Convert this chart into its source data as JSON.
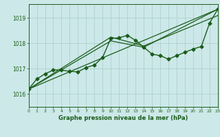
{
  "background_color": "#cce8e8",
  "grid_color": "#aacccc",
  "line_color": "#1a5c1a",
  "title": "Graphe pression niveau de la mer (hPa)",
  "xlim": [
    0,
    23
  ],
  "ylim": [
    1015.5,
    1019.55
  ],
  "yticks": [
    1016,
    1017,
    1018,
    1019
  ],
  "xticks": [
    0,
    1,
    2,
    3,
    4,
    5,
    6,
    7,
    8,
    9,
    10,
    11,
    12,
    13,
    14,
    15,
    16,
    17,
    18,
    19,
    20,
    21,
    22,
    23
  ],
  "series": [
    {
      "x": [
        0,
        1,
        2,
        3,
        4,
        5,
        6,
        7,
        8,
        9,
        10,
        11,
        12,
        13,
        14,
        15,
        16,
        17,
        18,
        19,
        20,
        21,
        22,
        23
      ],
      "y": [
        1016.2,
        1016.6,
        1016.8,
        1016.95,
        1016.95,
        1016.9,
        1016.88,
        1017.05,
        1017.15,
        1017.45,
        1018.2,
        1018.22,
        1018.32,
        1018.12,
        1017.85,
        1017.58,
        1017.52,
        1017.38,
        1017.52,
        1017.65,
        1017.78,
        1017.88,
        1018.8,
        1019.35
      ],
      "marker": "D",
      "markersize": 2.5,
      "linewidth": 1.0
    },
    {
      "x": [
        0,
        23
      ],
      "y": [
        1016.2,
        1019.35
      ],
      "marker": null,
      "linewidth": 0.9
    },
    {
      "x": [
        0,
        10,
        14,
        23
      ],
      "y": [
        1016.2,
        1018.1,
        1017.85,
        1019.35
      ],
      "marker": null,
      "linewidth": 0.9
    },
    {
      "x": [
        0,
        10,
        14,
        23
      ],
      "y": [
        1016.2,
        1018.25,
        1017.9,
        1019.1
      ],
      "marker": null,
      "linewidth": 0.9
    }
  ]
}
